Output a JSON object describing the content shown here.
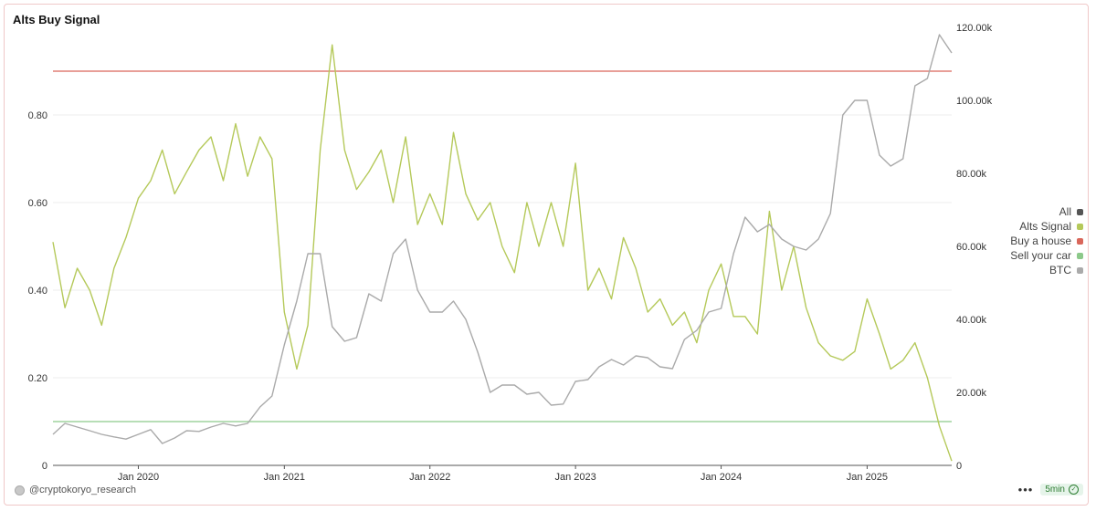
{
  "title": "Alts Buy Signal",
  "legend": [
    {
      "label": "All",
      "color": "#555555"
    },
    {
      "label": "Alts Signal",
      "color": "#b5c95a"
    },
    {
      "label": "Buy a house",
      "color": "#d9665a"
    },
    {
      "label": "Sell your car",
      "color": "#8cc98a"
    },
    {
      "label": "BTC",
      "color": "#aaaaaa"
    }
  ],
  "footer": {
    "attribution": "@cryptokoryo_research",
    "refresh_label": "5min",
    "more_icon": "more-horizontal-icon",
    "refresh_icon": "check-circle-icon"
  },
  "chart_data": {
    "type": "line",
    "title": "Alts Buy Signal",
    "x_range": [
      "2019-06-01",
      "2025-08-01"
    ],
    "x_ticks": [
      "Jan 2020",
      "Jan 2021",
      "Jan 2022",
      "Jan 2023",
      "Jan 2024",
      "Jan 2025"
    ],
    "y_left": {
      "range": [
        0,
        1.0
      ],
      "ticks": [
        0,
        0.2,
        0.4,
        0.6,
        0.8
      ],
      "tick_labels": [
        "0",
        "0.20",
        "0.40",
        "0.60",
        "0.80"
      ]
    },
    "y_right": {
      "range": [
        0,
        120000
      ],
      "ticks": [
        0,
        20000,
        40000,
        60000,
        80000,
        100000,
        120000
      ],
      "tick_labels": [
        "0",
        "20.00k",
        "40.00k",
        "60.00k",
        "80.00k",
        "100.00k",
        "120.00k"
      ]
    },
    "grid": "horizontal",
    "legend_position": "right",
    "reference_lines": [
      {
        "name": "Buy a house",
        "axis": "left",
        "value": 0.9,
        "color": "#d9665a"
      },
      {
        "name": "Sell your car",
        "axis": "left",
        "value": 0.1,
        "color": "#8cc98a"
      }
    ],
    "series": [
      {
        "name": "Alts Signal",
        "axis": "left",
        "color": "#b5c95a",
        "x": [
          "2019-06-01",
          "2019-07-01",
          "2019-08-01",
          "2019-09-01",
          "2019-10-01",
          "2019-11-01",
          "2019-12-01",
          "2020-01-01",
          "2020-02-01",
          "2020-03-01",
          "2020-04-01",
          "2020-05-01",
          "2020-06-01",
          "2020-07-01",
          "2020-08-01",
          "2020-09-01",
          "2020-10-01",
          "2020-11-01",
          "2020-12-01",
          "2021-01-01",
          "2021-02-01",
          "2021-03-01",
          "2021-04-01",
          "2021-05-01",
          "2021-06-01",
          "2021-07-01",
          "2021-08-01",
          "2021-09-01",
          "2021-10-01",
          "2021-11-01",
          "2021-12-01",
          "2022-01-01",
          "2022-02-01",
          "2022-03-01",
          "2022-04-01",
          "2022-05-01",
          "2022-06-01",
          "2022-07-01",
          "2022-08-01",
          "2022-09-01",
          "2022-10-01",
          "2022-11-01",
          "2022-12-01",
          "2023-01-01",
          "2023-02-01",
          "2023-03-01",
          "2023-04-01",
          "2023-05-01",
          "2023-06-01",
          "2023-07-01",
          "2023-08-01",
          "2023-09-01",
          "2023-10-01",
          "2023-11-01",
          "2023-12-01",
          "2024-01-01",
          "2024-02-01",
          "2024-03-01",
          "2024-04-01",
          "2024-05-01",
          "2024-06-01",
          "2024-07-01",
          "2024-08-01",
          "2024-09-01",
          "2024-10-01",
          "2024-11-01",
          "2024-12-01",
          "2025-01-01",
          "2025-02-01",
          "2025-03-01",
          "2025-04-01",
          "2025-05-01",
          "2025-06-01",
          "2025-07-01",
          "2025-08-01"
        ],
        "y": [
          0.51,
          0.36,
          0.45,
          0.4,
          0.32,
          0.45,
          0.52,
          0.61,
          0.65,
          0.72,
          0.62,
          0.67,
          0.72,
          0.75,
          0.65,
          0.78,
          0.66,
          0.75,
          0.7,
          0.35,
          0.22,
          0.32,
          0.72,
          0.96,
          0.72,
          0.63,
          0.67,
          0.72,
          0.6,
          0.75,
          0.55,
          0.62,
          0.55,
          0.76,
          0.62,
          0.56,
          0.6,
          0.5,
          0.44,
          0.6,
          0.5,
          0.6,
          0.5,
          0.69,
          0.4,
          0.45,
          0.38,
          0.52,
          0.45,
          0.35,
          0.38,
          0.32,
          0.35,
          0.28,
          0.4,
          0.46,
          0.34,
          0.34,
          0.3,
          0.58,
          0.4,
          0.5,
          0.36,
          0.28,
          0.25,
          0.24,
          0.26,
          0.38,
          0.3,
          0.22,
          0.24,
          0.28,
          0.2,
          0.09,
          0.01
        ]
      },
      {
        "name": "BTC",
        "axis": "right",
        "color": "#aaaaaa",
        "x": [
          "2019-06-01",
          "2019-07-01",
          "2019-08-01",
          "2019-09-01",
          "2019-10-01",
          "2019-11-01",
          "2019-12-01",
          "2020-01-01",
          "2020-02-01",
          "2020-03-01",
          "2020-04-01",
          "2020-05-01",
          "2020-06-01",
          "2020-07-01",
          "2020-08-01",
          "2020-09-01",
          "2020-10-01",
          "2020-11-01",
          "2020-12-01",
          "2021-01-01",
          "2021-02-01",
          "2021-03-01",
          "2021-04-01",
          "2021-05-01",
          "2021-06-01",
          "2021-07-01",
          "2021-08-01",
          "2021-09-01",
          "2021-10-01",
          "2021-11-01",
          "2021-12-01",
          "2022-01-01",
          "2022-02-01",
          "2022-03-01",
          "2022-04-01",
          "2022-05-01",
          "2022-06-01",
          "2022-07-01",
          "2022-08-01",
          "2022-09-01",
          "2022-10-01",
          "2022-11-01",
          "2022-12-01",
          "2023-01-01",
          "2023-02-01",
          "2023-03-01",
          "2023-04-01",
          "2023-05-01",
          "2023-06-01",
          "2023-07-01",
          "2023-08-01",
          "2023-09-01",
          "2023-10-01",
          "2023-11-01",
          "2023-12-01",
          "2024-01-01",
          "2024-02-01",
          "2024-03-01",
          "2024-04-01",
          "2024-05-01",
          "2024-06-01",
          "2024-07-01",
          "2024-08-01",
          "2024-09-01",
          "2024-10-01",
          "2024-11-01",
          "2024-12-01",
          "2025-01-01",
          "2025-02-01",
          "2025-03-01",
          "2025-04-01",
          "2025-05-01",
          "2025-06-01",
          "2025-07-01",
          "2025-08-01"
        ],
        "y": [
          8500,
          11500,
          10500,
          9500,
          8500,
          7800,
          7200,
          8500,
          9800,
          6000,
          7500,
          9500,
          9300,
          10500,
          11500,
          10800,
          11500,
          16000,
          19000,
          33000,
          45000,
          58000,
          58000,
          38000,
          34000,
          35000,
          47000,
          45000,
          58000,
          62000,
          48000,
          42000,
          42000,
          45000,
          40000,
          31000,
          20000,
          22000,
          22000,
          19500,
          20000,
          16500,
          16800,
          23000,
          23500,
          27000,
          29000,
          27500,
          30000,
          29500,
          27000,
          26500,
          34500,
          37000,
          42000,
          43000,
          58000,
          68000,
          64000,
          66000,
          62000,
          60000,
          59000,
          62000,
          69000,
          96000,
          100000,
          100000,
          85000,
          82000,
          84000,
          104000,
          106000,
          118000,
          113000
        ]
      }
    ]
  }
}
